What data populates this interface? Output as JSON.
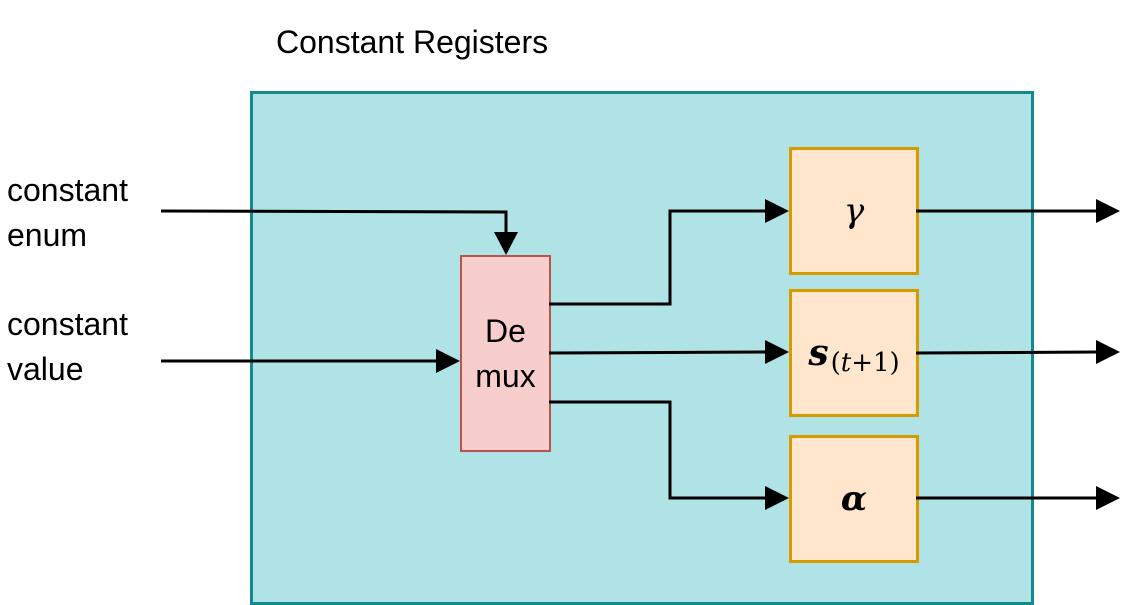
{
  "title": "Constant Registers",
  "inputs": {
    "enum": {
      "line1": "constant",
      "line2": "enum"
    },
    "value": {
      "line1": "constant",
      "line2": "value"
    }
  },
  "demux": {
    "line1": "De",
    "line2": "mux"
  },
  "registers": {
    "gamma": {
      "symbol": "γ"
    },
    "s": {
      "symbol": "s",
      "sub_open": "(",
      "sub_var": "t",
      "sub_rest": "+1)"
    },
    "alpha": {
      "symbol": "α"
    }
  },
  "colors": {
    "container_fill": "#b0e3e6",
    "container_border": "#138a8e",
    "demux_fill": "#f8cecc",
    "demux_border": "#b85450",
    "register_fill": "#ffe6cc",
    "register_border": "#d79b00"
  }
}
